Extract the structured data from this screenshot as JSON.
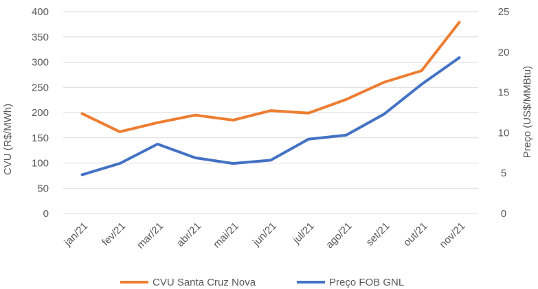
{
  "chart_data": {
    "type": "line",
    "categories": [
      "jan/21",
      "fev/21",
      "mar/21",
      "abr/21",
      "mai/21",
      "jun/21",
      "jul/21",
      "ago/21",
      "set/21",
      "out/21",
      "nov/21"
    ],
    "ylabel": "CVU (R$/MWh)",
    "ylabel_right": "Preço (US$/MMBtu)",
    "ylim": [
      0,
      400
    ],
    "ylim_right": [
      0,
      25
    ],
    "yticks": [
      "0",
      "50",
      "100",
      "150",
      "200",
      "250",
      "300",
      "350",
      "400"
    ],
    "yticks_right": [
      "0",
      "5",
      "10",
      "15",
      "20",
      "25"
    ],
    "grid": true,
    "legend_position": "bottom",
    "series": [
      {
        "name": "CVU Santa Cruz Nova",
        "axis": "left",
        "color": "#ED7D31",
        "values": [
          198,
          162,
          180,
          195,
          185,
          204,
          199,
          226,
          260,
          283,
          379
        ]
      },
      {
        "name": "Preço FOB GNL",
        "axis": "right",
        "color": "#4472C4",
        "values": [
          4.8,
          6.2,
          8.6,
          6.9,
          6.2,
          6.6,
          9.2,
          9.7,
          12.3,
          16.0,
          19.3
        ]
      }
    ]
  }
}
